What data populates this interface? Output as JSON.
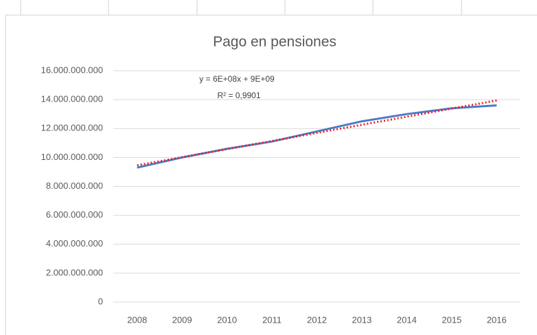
{
  "chart_data": {
    "type": "line",
    "title": "Pago en pensiones",
    "categories": [
      "2008",
      "2009",
      "2010",
      "2011",
      "2012",
      "2013",
      "2014",
      "2015",
      "2016"
    ],
    "series": [
      {
        "name": "Pago en pensiones",
        "color": "#4a7cc4",
        "values": [
          9300000000,
          10000000000,
          10600000000,
          11100000000,
          11800000000,
          12500000000,
          13000000000,
          13400000000,
          13600000000
        ]
      }
    ],
    "trendline": {
      "type": "linear",
      "color": "#e8202a",
      "style": "dotted"
    },
    "annotations": [
      "y = 6E+08x + 9E+09",
      "R² = 0,9901"
    ],
    "ylim": [
      0,
      16000000000
    ],
    "yticks": [
      {
        "value": 0,
        "label": "0"
      },
      {
        "value": 2000000000,
        "label": "2.000.000.000"
      },
      {
        "value": 4000000000,
        "label": "4.000.000.000"
      },
      {
        "value": 6000000000,
        "label": "6.000.000.000"
      },
      {
        "value": 8000000000,
        "label": "8.000.000.000"
      },
      {
        "value": 10000000000,
        "label": "10.000.000.000"
      },
      {
        "value": 12000000000,
        "label": "12.000.000.000"
      },
      {
        "value": 14000000000,
        "label": "14.000.000.000"
      },
      {
        "value": 16000000000,
        "label": "16.000.000.000"
      }
    ],
    "grid": true
  }
}
